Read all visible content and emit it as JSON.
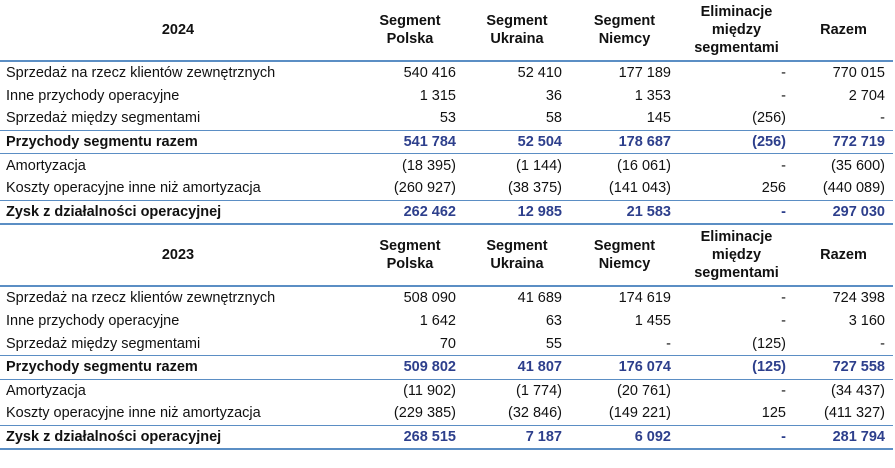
{
  "columns": {
    "polska": [
      "Segment",
      "Polska"
    ],
    "ukraina": [
      "Segment",
      "Ukraina"
    ],
    "niemcy": [
      "Segment",
      "Niemcy"
    ],
    "elim": [
      "Eliminacje",
      "między",
      "segmentami"
    ],
    "razem": "Razem"
  },
  "blocks": [
    {
      "year": "2024",
      "rows": [
        {
          "label": "Sprzedaż na rzecz klientów zewnętrznych",
          "values": [
            "540 416",
            "52 410",
            "177 189",
            "-",
            "770 015"
          ]
        },
        {
          "label": "Inne przychody operacyjne",
          "values": [
            "1 315",
            "36",
            "1 353",
            "-",
            "2 704"
          ]
        },
        {
          "label": "Sprzedaż między segmentami",
          "values": [
            "53",
            "58",
            "145",
            "(256)",
            "-"
          ]
        }
      ],
      "revenue_total": {
        "label": "Przychody segmentu razem",
        "values": [
          "541 784",
          "52 504",
          "178 687",
          "(256)",
          "772 719"
        ]
      },
      "cost_rows": [
        {
          "label": "Amortyzacja",
          "values": [
            "(18 395)",
            "(1 144)",
            "(16 061)",
            "-",
            "(35 600)"
          ]
        },
        {
          "label": "Koszty operacyjne inne niż amortyzacja",
          "values": [
            "(260 927)",
            "(38 375)",
            "(141 043)",
            "256",
            "(440 089)"
          ]
        }
      ],
      "profit": {
        "label": "Zysk z działalności operacyjnej",
        "values": [
          "262 462",
          "12 985",
          "21 583",
          "-",
          "297 030"
        ]
      }
    },
    {
      "year": "2023",
      "rows": [
        {
          "label": "Sprzedaż na rzecz klientów zewnętrznych",
          "values": [
            "508 090",
            "41 689",
            "174 619",
            "-",
            "724 398"
          ]
        },
        {
          "label": "Inne przychody operacyjne",
          "values": [
            "1 642",
            "63",
            "1 455",
            "-",
            "3 160"
          ]
        },
        {
          "label": "Sprzedaż między segmentami",
          "values": [
            "70",
            "55",
            "-",
            "(125)",
            "-"
          ]
        }
      ],
      "revenue_total": {
        "label": "Przychody segmentu razem",
        "values": [
          "509 802",
          "41 807",
          "176 074",
          "(125)",
          "727 558"
        ]
      },
      "cost_rows": [
        {
          "label": "Amortyzacja",
          "values": [
            "(11 902)",
            "(1 774)",
            "(20 761)",
            "-",
            "(34 437)"
          ]
        },
        {
          "label": "Koszty operacyjne inne niż amortyzacja",
          "values": [
            "(229 385)",
            "(32 846)",
            "(149 221)",
            "125",
            "(411 327)"
          ]
        }
      ],
      "profit": {
        "label": "Zysk z działalności operacyjnej",
        "values": [
          "268 515",
          "7 187",
          "6 092",
          "-",
          "281 794"
        ]
      }
    }
  ]
}
